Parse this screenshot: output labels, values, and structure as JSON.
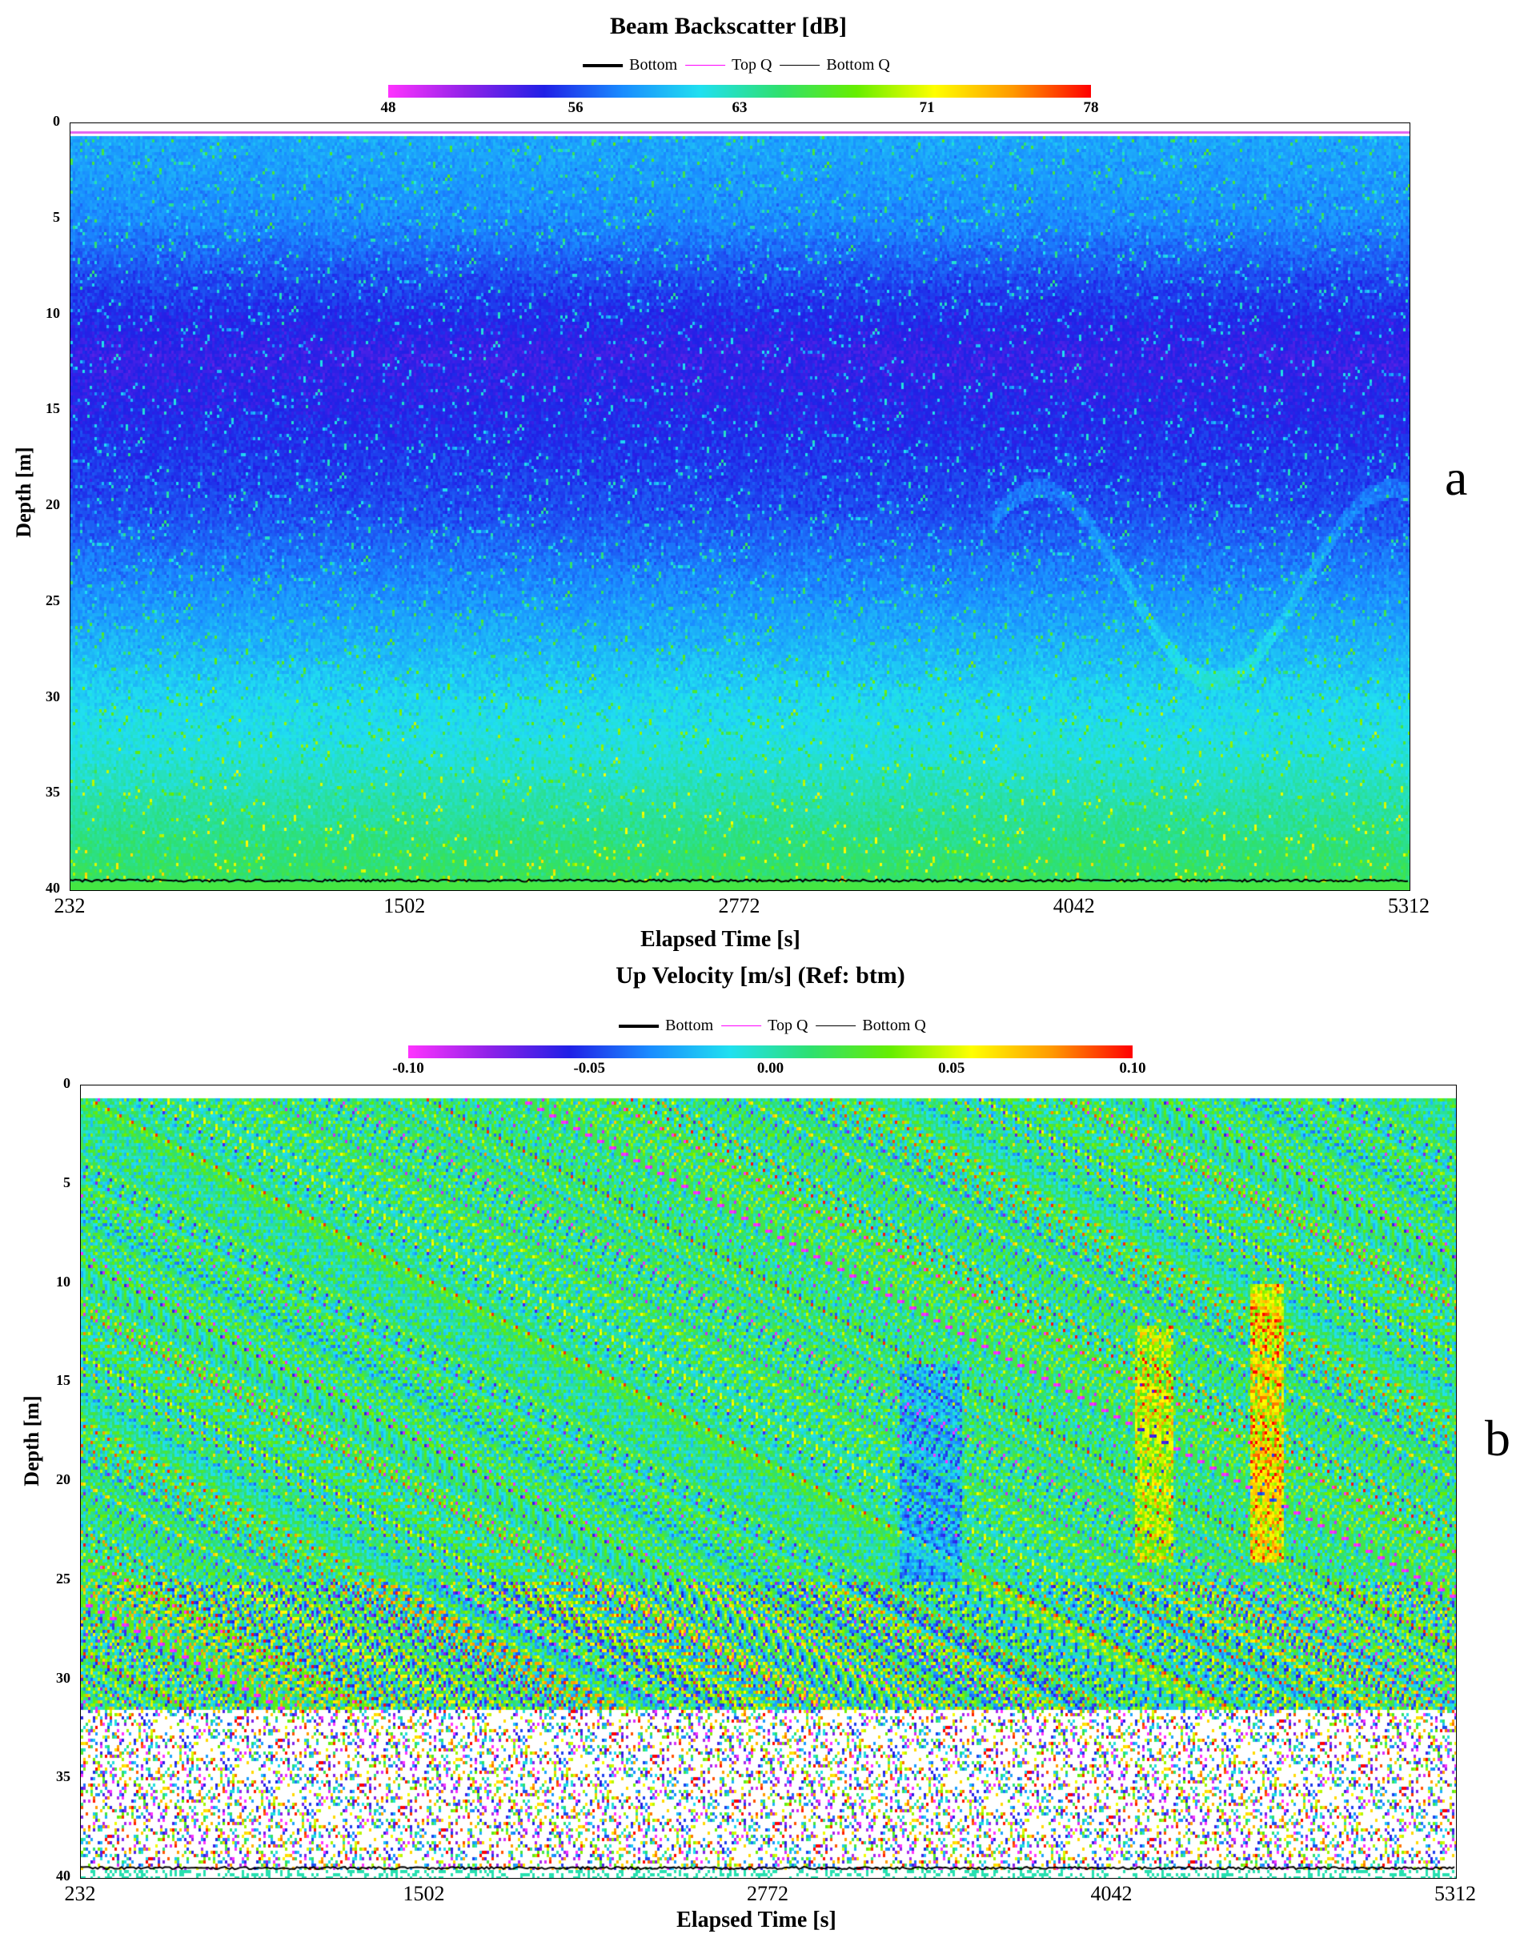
{
  "chart_data": [
    {
      "panel_label": "a",
      "type": "heatmap",
      "title": "Beam Backscatter [dB]",
      "xlabel": "Elapsed Time [s]",
      "ylabel": "Depth [m]",
      "legend": [
        {
          "label": "Bottom",
          "color": "#000000",
          "style": "thick"
        },
        {
          "label": "Top Q",
          "color": "#ff00ff",
          "style": "thin"
        },
        {
          "label": "Bottom Q",
          "color": "#000000",
          "style": "thin"
        }
      ],
      "colorbar": {
        "min": 48,
        "max": 78,
        "ticks": [
          "48",
          "56",
          "63",
          "71",
          "78"
        ],
        "tick_values": [
          48,
          56,
          63,
          71,
          78
        ],
        "colors": [
          "#ff33ff",
          "#8f22e8",
          "#2020e6",
          "#1a8cff",
          "#20e0f0",
          "#2ee070",
          "#66ee00",
          "#ffff00",
          "#ff9900",
          "#ff0000"
        ]
      },
      "x_ticks": [
        "232",
        "1502",
        "2772",
        "4042",
        "5312"
      ],
      "x_tick_values": [
        232,
        1502,
        2772,
        4042,
        5312
      ],
      "xlim": [
        232,
        5312
      ],
      "y_ticks": [
        "0",
        "5",
        "10",
        "15",
        "20",
        "25",
        "30",
        "35",
        "40"
      ],
      "y_tick_values": [
        0,
        5,
        10,
        15,
        20,
        25,
        30,
        35,
        40
      ],
      "ylim": [
        0,
        40
      ],
      "y_inverted": true,
      "bottom_depth_m": 39.5,
      "depth_profile": {
        "depth": [
          1,
          5,
          8,
          10,
          12,
          14,
          16,
          18,
          20,
          22,
          25,
          28,
          30,
          33,
          35,
          37,
          39
        ],
        "value": [
          59,
          58,
          56,
          55,
          54,
          54.5,
          55,
          55.5,
          56,
          57,
          58.5,
          60,
          61,
          62,
          63,
          64,
          65
        ]
      },
      "grid": false
    },
    {
      "panel_label": "b",
      "type": "heatmap",
      "title": "Up Velocity [m/s] (Ref: btm)",
      "xlabel": "Elapsed Time [s]",
      "ylabel": "Depth [m]",
      "legend": [
        {
          "label": "Bottom",
          "color": "#000000",
          "style": "thick"
        },
        {
          "label": "Top Q",
          "color": "#ff00ff",
          "style": "thin"
        },
        {
          "label": "Bottom Q",
          "color": "#000000",
          "style": "thin"
        }
      ],
      "colorbar": {
        "min": -0.1,
        "max": 0.1,
        "ticks": [
          "-0.10",
          "-0.05",
          "0.00",
          "0.05",
          "0.10"
        ],
        "tick_values": [
          -0.1,
          -0.05,
          0.0,
          0.05,
          0.1
        ],
        "colors": [
          "#ff33ff",
          "#8f22e8",
          "#2020e6",
          "#1a8cff",
          "#20e0f0",
          "#2ee070",
          "#66ee00",
          "#ffff00",
          "#ff9900",
          "#ff0000"
        ]
      },
      "x_ticks": [
        "232",
        "1502",
        "2772",
        "4042",
        "5312"
      ],
      "x_tick_values": [
        232,
        1502,
        2772,
        4042,
        5312
      ],
      "xlim": [
        232,
        5312
      ],
      "y_ticks": [
        "0",
        "5",
        "10",
        "15",
        "20",
        "25",
        "30",
        "35",
        "40"
      ],
      "y_tick_values": [
        0,
        5,
        10,
        15,
        20,
        25,
        30,
        35,
        40
      ],
      "ylim": [
        0,
        40
      ],
      "y_inverted": true,
      "bottom_depth_m": 39.5,
      "valid_data_depth_limit_m": 31.5,
      "grid": false
    }
  ]
}
